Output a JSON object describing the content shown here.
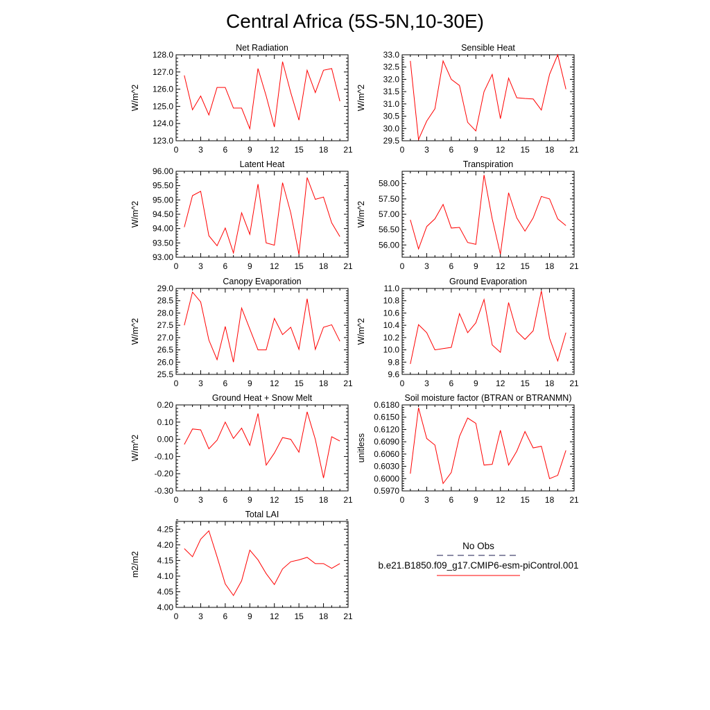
{
  "figure": {
    "title": "Central Africa (5S-5N,10-30E)"
  },
  "colors": {
    "model": "#ff0000",
    "obs": "#1a1a4d"
  },
  "legend": {
    "obs_label": "No Obs",
    "model_label": "b.e21.B1850.f09_g17.CMIP6-esm-piControl.001"
  },
  "chart_data": [
    {
      "type": "line",
      "title": "Net Radiation",
      "ylabel": "W/m^2",
      "xlim": [
        0,
        21
      ],
      "ylim": [
        123.0,
        128.0
      ],
      "xticks": [
        "0",
        "3",
        "6",
        "9",
        "12",
        "15",
        "18",
        "21"
      ],
      "yticks": [
        "123.0",
        "124.0",
        "125.0",
        "126.0",
        "127.0",
        "128.0"
      ],
      "ytick_values": [
        123.0,
        124.0,
        125.0,
        126.0,
        127.0,
        128.0
      ],
      "y_minor_step": 0.2,
      "x": [
        1,
        2,
        3,
        4,
        5,
        6,
        7,
        8,
        9,
        10,
        11,
        12,
        13,
        14,
        15,
        16,
        17,
        18,
        19,
        20
      ],
      "values": [
        126.8,
        124.8,
        125.6,
        124.5,
        126.1,
        126.1,
        124.9,
        124.9,
        123.7,
        127.2,
        125.6,
        123.8,
        127.6,
        125.8,
        124.2,
        127.1,
        125.8,
        127.1,
        127.2,
        125.3
      ]
    },
    {
      "type": "line",
      "title": "Sensible Heat",
      "ylabel": "W/m^2",
      "xlim": [
        0,
        21
      ],
      "ylim": [
        29.5,
        33.0
      ],
      "xticks": [
        "0",
        "3",
        "6",
        "9",
        "12",
        "15",
        "18",
        "21"
      ],
      "yticks": [
        "29.5",
        "30.0",
        "30.5",
        "31.0",
        "31.5",
        "32.0",
        "32.5",
        "33.0"
      ],
      "ytick_values": [
        29.5,
        30.0,
        30.5,
        31.0,
        31.5,
        32.0,
        32.5,
        33.0
      ],
      "y_minor_step": 0.1,
      "x": [
        1,
        2,
        3,
        4,
        5,
        6,
        7,
        8,
        9,
        10,
        11,
        12,
        13,
        14,
        15,
        16,
        17,
        18,
        19,
        20
      ],
      "values": [
        32.75,
        29.55,
        30.3,
        30.8,
        32.75,
        32.0,
        31.75,
        30.25,
        29.9,
        31.5,
        32.2,
        30.4,
        32.05,
        31.25,
        31.22,
        31.2,
        30.75,
        32.2,
        33.0,
        31.6
      ]
    },
    {
      "type": "line",
      "title": "Latent Heat",
      "ylabel": "W/m^2",
      "xlim": [
        0,
        21
      ],
      "ylim": [
        93.0,
        96.0
      ],
      "xticks": [
        "0",
        "3",
        "6",
        "9",
        "12",
        "15",
        "18",
        "21"
      ],
      "yticks": [
        "93.00",
        "93.50",
        "94.00",
        "94.50",
        "95.00",
        "95.50",
        "96.00"
      ],
      "ytick_values": [
        93.0,
        93.5,
        94.0,
        94.5,
        95.0,
        95.5,
        96.0
      ],
      "y_minor_step": 0.1,
      "x": [
        1,
        2,
        3,
        4,
        5,
        6,
        7,
        8,
        9,
        10,
        11,
        12,
        13,
        14,
        15,
        16,
        17,
        18,
        19,
        20
      ],
      "values": [
        94.05,
        95.15,
        95.3,
        93.75,
        93.4,
        94.02,
        93.15,
        94.55,
        93.8,
        95.55,
        93.5,
        93.42,
        95.6,
        94.55,
        93.1,
        95.78,
        95.02,
        95.1,
        94.2,
        93.72
      ]
    },
    {
      "type": "line",
      "title": "Transpiration",
      "ylabel": "W/m^2",
      "xlim": [
        0,
        21
      ],
      "ylim": [
        55.6,
        58.4
      ],
      "xticks": [
        "0",
        "3",
        "6",
        "9",
        "12",
        "15",
        "18",
        "21"
      ],
      "yticks": [
        "56.00",
        "56.50",
        "57.00",
        "57.50",
        "58.00"
      ],
      "ytick_values": [
        56.0,
        56.5,
        57.0,
        57.5,
        58.0
      ],
      "y_minor_step": 0.1,
      "x": [
        1,
        2,
        3,
        4,
        5,
        6,
        7,
        8,
        9,
        10,
        11,
        12,
        13,
        14,
        15,
        16,
        17,
        18,
        19,
        20
      ],
      "values": [
        56.82,
        55.87,
        56.6,
        56.85,
        57.32,
        56.55,
        56.57,
        56.08,
        56.02,
        58.28,
        56.85,
        55.7,
        57.7,
        56.88,
        56.45,
        56.88,
        57.58,
        57.5,
        56.85,
        56.63
      ]
    },
    {
      "type": "line",
      "title": "Canopy Evaporation",
      "ylabel": "W/m^2",
      "xlim": [
        0,
        21
      ],
      "ylim": [
        25.5,
        29.0
      ],
      "xticks": [
        "0",
        "3",
        "6",
        "9",
        "12",
        "15",
        "18",
        "21"
      ],
      "yticks": [
        "25.5",
        "26.0",
        "26.5",
        "27.0",
        "27.5",
        "28.0",
        "28.5",
        "29.0"
      ],
      "ytick_values": [
        25.5,
        26.0,
        26.5,
        27.0,
        27.5,
        28.0,
        28.5,
        29.0
      ],
      "y_minor_step": 0.1,
      "x": [
        1,
        2,
        3,
        4,
        5,
        6,
        7,
        8,
        9,
        10,
        11,
        12,
        13,
        14,
        15,
        16,
        17,
        18,
        19,
        20
      ],
      "values": [
        27.5,
        28.85,
        28.45,
        26.9,
        26.1,
        27.45,
        26.0,
        28.2,
        27.35,
        26.5,
        26.5,
        27.78,
        27.12,
        27.42,
        26.52,
        28.58,
        26.52,
        27.42,
        27.52,
        26.85
      ]
    },
    {
      "type": "line",
      "title": "Ground Evaporation",
      "ylabel": "W/m^2",
      "xlim": [
        0,
        21
      ],
      "ylim": [
        9.6,
        11.0
      ],
      "xticks": [
        "0",
        "3",
        "6",
        "9",
        "12",
        "15",
        "18",
        "21"
      ],
      "yticks": [
        "9.6",
        "9.8",
        "10.0",
        "10.2",
        "10.4",
        "10.6",
        "10.8",
        "11.0"
      ],
      "ytick_values": [
        9.6,
        9.8,
        10.0,
        10.2,
        10.4,
        10.6,
        10.8,
        11.0
      ],
      "y_minor_step": 0.04,
      "x": [
        1,
        2,
        3,
        4,
        5,
        6,
        7,
        8,
        9,
        10,
        11,
        12,
        13,
        14,
        15,
        16,
        17,
        18,
        19,
        20
      ],
      "values": [
        9.77,
        10.41,
        10.28,
        10.0,
        10.02,
        10.04,
        10.59,
        10.28,
        10.44,
        10.82,
        10.08,
        9.96,
        10.77,
        10.3,
        10.17,
        10.31,
        10.96,
        10.19,
        9.82,
        10.28
      ]
    },
    {
      "type": "line",
      "title": "Ground Heat + Snow Melt",
      "ylabel": "W/m^2",
      "xlim": [
        0,
        21
      ],
      "ylim": [
        -0.3,
        0.2
      ],
      "xticks": [
        "0",
        "3",
        "6",
        "9",
        "12",
        "15",
        "18",
        "21"
      ],
      "yticks": [
        "-0.30",
        "-0.20",
        "-0.10",
        "0.00",
        "0.10",
        "0.20"
      ],
      "ytick_values": [
        -0.3,
        -0.2,
        -0.1,
        0.0,
        0.1,
        0.2
      ],
      "y_minor_step": 0.02,
      "x": [
        1,
        2,
        3,
        4,
        5,
        6,
        7,
        8,
        9,
        10,
        11,
        12,
        13,
        14,
        15,
        16,
        17,
        18,
        19,
        20
      ],
      "values": [
        -0.03,
        0.06,
        0.055,
        -0.055,
        -0.005,
        0.1,
        0.005,
        0.065,
        -0.035,
        0.15,
        -0.15,
        -0.08,
        0.01,
        0.0,
        -0.075,
        0.16,
        0.0,
        -0.225,
        0.015,
        -0.01
      ]
    },
    {
      "type": "line",
      "title": "Soil moisture factor (BTRAN or BTRANMN)",
      "ylabel": "unitless",
      "xlim": [
        0,
        21
      ],
      "ylim": [
        0.597,
        0.618
      ],
      "xticks": [
        "0",
        "3",
        "6",
        "9",
        "12",
        "15",
        "18",
        "21"
      ],
      "yticks": [
        "0.5970",
        "0.6000",
        "0.6030",
        "0.6060",
        "0.6090",
        "0.6120",
        "0.6150",
        "0.6180"
      ],
      "ytick_values": [
        0.597,
        0.6,
        0.603,
        0.606,
        0.609,
        0.612,
        0.615,
        0.618
      ],
      "y_minor_step": 0.0006,
      "x": [
        1,
        2,
        3,
        4,
        5,
        6,
        7,
        8,
        9,
        10,
        11,
        12,
        13,
        14,
        15,
        16,
        17,
        18,
        19,
        20
      ],
      "values": [
        0.6012,
        0.6173,
        0.6098,
        0.6082,
        0.5988,
        0.6015,
        0.6103,
        0.6148,
        0.6135,
        0.6033,
        0.6035,
        0.6118,
        0.6033,
        0.6067,
        0.6115,
        0.6075,
        0.6079,
        0.6,
        0.6008,
        0.6069
      ]
    },
    {
      "type": "line",
      "title": "Total LAI",
      "ylabel": "m2/m2",
      "xlim": [
        0,
        21
      ],
      "ylim": [
        4.0,
        4.275
      ],
      "xticks": [
        "0",
        "3",
        "6",
        "9",
        "12",
        "15",
        "18",
        "21"
      ],
      "yticks": [
        "4.00",
        "4.05",
        "4.10",
        "4.15",
        "4.20",
        "4.25"
      ],
      "ytick_values": [
        4.0,
        4.05,
        4.1,
        4.15,
        4.2,
        4.25
      ],
      "y_minor_step": 0.01,
      "x": [
        1,
        2,
        3,
        4,
        5,
        6,
        7,
        8,
        9,
        10,
        11,
        12,
        13,
        14,
        15,
        16,
        17,
        18,
        19,
        20
      ],
      "values": [
        4.188,
        4.162,
        4.218,
        4.245,
        4.162,
        4.075,
        4.038,
        4.085,
        4.183,
        4.152,
        4.108,
        4.073,
        4.123,
        4.146,
        4.152,
        4.16,
        4.14,
        4.14,
        4.125,
        4.14
      ]
    }
  ]
}
